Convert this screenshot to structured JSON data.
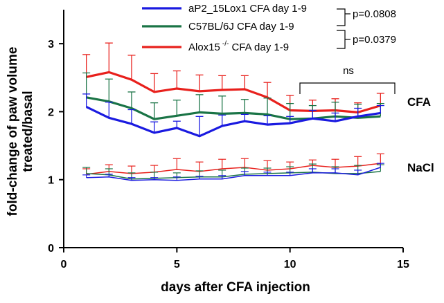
{
  "chart_data": {
    "type": "line",
    "title": "",
    "xlabel": "days after CFA injection",
    "ylabel_lines": [
      "fold-change of paw volume",
      "treated/basal"
    ],
    "xlim": [
      0,
      15
    ],
    "ylim": [
      0,
      3.5
    ],
    "xticks": [
      0,
      5,
      10,
      15
    ],
    "yticks": [
      0,
      1,
      2,
      3
    ],
    "grid": false,
    "legend_position": "top",
    "x": [
      1,
      2,
      3,
      4,
      5,
      6,
      7,
      8,
      9,
      10,
      11,
      12,
      13,
      14
    ],
    "series": [
      {
        "key": "alox15",
        "legend_name": "Alox15",
        "legend_sup": "-/-",
        "legend_suffix": " CFA day 1-9",
        "color": "#e8201c",
        "cfa": [
          2.51,
          2.58,
          2.47,
          2.29,
          2.34,
          2.3,
          2.32,
          2.33,
          2.21,
          2.02,
          2.01,
          2.02,
          1.99,
          2.09
        ],
        "cfa_err": [
          0.33,
          0.43,
          0.36,
          0.27,
          0.26,
          0.24,
          0.21,
          0.2,
          0.22,
          0.22,
          0.16,
          0.17,
          0.14,
          0.18
        ],
        "nacl": [
          1.08,
          1.12,
          1.09,
          1.11,
          1.15,
          1.12,
          1.16,
          1.18,
          1.14,
          1.16,
          1.21,
          1.18,
          1.2,
          1.24
        ],
        "nacl_err": [
          0.08,
          0.1,
          0.11,
          0.1,
          0.16,
          0.14,
          0.14,
          0.13,
          0.14,
          0.1,
          0.08,
          0.12,
          0.14,
          0.14
        ]
      },
      {
        "key": "c57",
        "legend_name": "C57BL/6J CFA day 1-9",
        "legend_sup": "",
        "legend_suffix": "",
        "color": "#1a7446",
        "cfa": [
          2.21,
          2.15,
          2.05,
          1.89,
          1.94,
          1.99,
          1.97,
          1.98,
          1.96,
          1.89,
          1.9,
          1.93,
          1.91,
          1.93
        ],
        "cfa_err": [
          0.36,
          0.33,
          0.24,
          0.24,
          0.23,
          0.26,
          0.26,
          0.2,
          0.24,
          0.23,
          0.19,
          0.21,
          0.2,
          0.19
        ],
        "nacl": [
          1.09,
          1.07,
          1.01,
          1.02,
          1.03,
          1.04,
          1.04,
          1.08,
          1.09,
          1.1,
          1.11,
          1.09,
          1.09,
          1.12
        ],
        "nacl_err": [
          0.09,
          0.09,
          0.09,
          0.09,
          0.07,
          0.09,
          0.1,
          0.09,
          0.08,
          0.09,
          0.12,
          0.1,
          0.12,
          0.1
        ]
      },
      {
        "key": "ap2",
        "legend_name": "aP2_15Lox1 CFA day 1-9",
        "legend_sup": "",
        "legend_suffix": "",
        "color": "#1a1ae0",
        "cfa": [
          2.07,
          1.91,
          1.82,
          1.69,
          1.76,
          1.64,
          1.79,
          1.86,
          1.81,
          1.83,
          1.9,
          1.86,
          1.93,
          1.98
        ],
        "cfa_err": [
          0.19,
          0.23,
          0.21,
          0.16,
          0.1,
          0.29,
          0.16,
          0.1,
          0.13,
          0.1,
          0.12,
          0.12,
          0.12,
          0.11
        ],
        "nacl": [
          1.03,
          1.04,
          0.99,
          1.0,
          0.99,
          1.01,
          1.01,
          1.06,
          1.06,
          1.06,
          1.1,
          1.1,
          1.07,
          1.18
        ],
        "nacl_err": [
          0.04,
          0.04,
          0.04,
          0.03,
          0.05,
          0.04,
          0.05,
          0.06,
          0.05,
          0.05,
          0.06,
          0.06,
          0.07,
          0.06
        ]
      }
    ],
    "legend_order": [
      "ap2",
      "c57",
      "alox15"
    ],
    "group_labels": {
      "cfa": "CFA",
      "nacl": "NaCl"
    },
    "annotations": {
      "p1": "p=0.0808",
      "p2": "p=0.0379",
      "ns": "ns"
    }
  }
}
